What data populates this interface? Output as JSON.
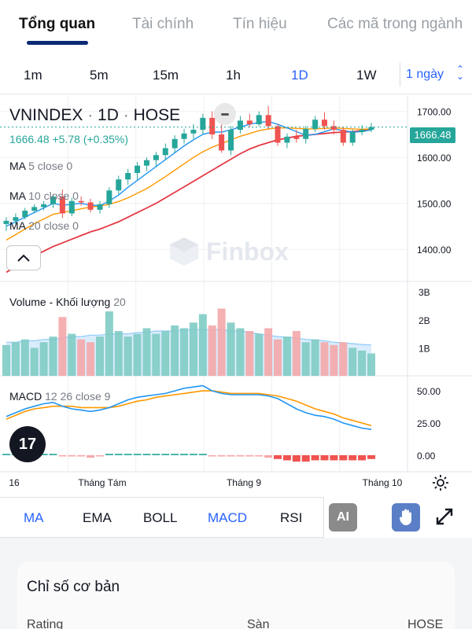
{
  "tabs": [
    "Tổng quan",
    "Tài chính",
    "Tín hiệu",
    "Các mã trong ngành"
  ],
  "timeframes": [
    "1m",
    "5m",
    "15m",
    "1h",
    "1D",
    "1W"
  ],
  "timeframe_select": "1 ngày",
  "legend": {
    "symbol": "VNINDEX",
    "interval": "1D",
    "exchange": "HOSE",
    "last": "1666.48",
    "change": "+5.78 (+0.35%)",
    "ma": [
      {
        "name": "MA",
        "params": "5 close 0"
      },
      {
        "name": "MA",
        "params": "10 close 0"
      },
      {
        "name": "MA",
        "params": "20 close 0"
      }
    ],
    "volume_label": "Volume - Khối lượng",
    "volume_param": "20",
    "macd_label": "MACD",
    "macd_params": "12 26 close 9"
  },
  "watermark": "Finbox",
  "logo_text": "17",
  "price_tag": "1666.48",
  "price_axis": [
    "1700.00",
    "1600.00",
    "1500.00",
    "1400.00"
  ],
  "volume_axis": [
    "3B",
    "2B",
    "1B"
  ],
  "macd_axis": [
    "50.00",
    "25.00",
    "0.00"
  ],
  "time_axis": [
    "16",
    "Tháng Tám",
    "Tháng 9",
    "Tháng 10"
  ],
  "indicators": [
    "MA",
    "EMA",
    "BOLL",
    "MACD",
    "RSI"
  ],
  "ai_label": "AI",
  "card": {
    "title": "Chỉ số cơ bản",
    "row_label": "Rating",
    "row_mid": "Sàn",
    "row_value": "HOSE"
  },
  "colors": {
    "up": "#26a69a",
    "down": "#ef5350",
    "accent": "#2962ff",
    "ma5": "#2196f3",
    "ma10": "#ff9800",
    "ma20": "#e53945"
  },
  "chart_data": {
    "type": "candlestick",
    "ylim": [
      1330,
      1720
    ],
    "candles": [
      {
        "o": 1455,
        "h": 1470,
        "l": 1440,
        "c": 1462
      },
      {
        "o": 1462,
        "h": 1478,
        "l": 1455,
        "c": 1470
      },
      {
        "o": 1470,
        "h": 1490,
        "l": 1465,
        "c": 1484
      },
      {
        "o": 1484,
        "h": 1498,
        "l": 1478,
        "c": 1492
      },
      {
        "o": 1492,
        "h": 1505,
        "l": 1485,
        "c": 1498
      },
      {
        "o": 1498,
        "h": 1520,
        "l": 1490,
        "c": 1515
      },
      {
        "o": 1515,
        "h": 1530,
        "l": 1468,
        "c": 1478
      },
      {
        "o": 1478,
        "h": 1512,
        "l": 1472,
        "c": 1505
      },
      {
        "o": 1505,
        "h": 1515,
        "l": 1495,
        "c": 1502
      },
      {
        "o": 1502,
        "h": 1510,
        "l": 1480,
        "c": 1486
      },
      {
        "o": 1486,
        "h": 1505,
        "l": 1478,
        "c": 1498
      },
      {
        "o": 1498,
        "h": 1535,
        "l": 1490,
        "c": 1528
      },
      {
        "o": 1528,
        "h": 1560,
        "l": 1520,
        "c": 1552
      },
      {
        "o": 1552,
        "h": 1575,
        "l": 1540,
        "c": 1566
      },
      {
        "o": 1566,
        "h": 1590,
        "l": 1550,
        "c": 1582
      },
      {
        "o": 1582,
        "h": 1600,
        "l": 1570,
        "c": 1594
      },
      {
        "o": 1594,
        "h": 1612,
        "l": 1580,
        "c": 1605
      },
      {
        "o": 1605,
        "h": 1630,
        "l": 1595,
        "c": 1620
      },
      {
        "o": 1620,
        "h": 1648,
        "l": 1610,
        "c": 1640
      },
      {
        "o": 1640,
        "h": 1662,
        "l": 1630,
        "c": 1652
      },
      {
        "o": 1652,
        "h": 1672,
        "l": 1640,
        "c": 1660
      },
      {
        "o": 1660,
        "h": 1695,
        "l": 1650,
        "c": 1686
      },
      {
        "o": 1686,
        "h": 1700,
        "l": 1640,
        "c": 1650
      },
      {
        "o": 1650,
        "h": 1680,
        "l": 1610,
        "c": 1615
      },
      {
        "o": 1615,
        "h": 1668,
        "l": 1605,
        "c": 1660
      },
      {
        "o": 1660,
        "h": 1690,
        "l": 1652,
        "c": 1680
      },
      {
        "o": 1680,
        "h": 1695,
        "l": 1665,
        "c": 1672
      },
      {
        "o": 1672,
        "h": 1700,
        "l": 1668,
        "c": 1692
      },
      {
        "o": 1692,
        "h": 1712,
        "l": 1660,
        "c": 1668
      },
      {
        "o": 1668,
        "h": 1672,
        "l": 1625,
        "c": 1632
      },
      {
        "o": 1632,
        "h": 1652,
        "l": 1620,
        "c": 1645
      },
      {
        "o": 1645,
        "h": 1660,
        "l": 1632,
        "c": 1640
      },
      {
        "o": 1640,
        "h": 1668,
        "l": 1630,
        "c": 1662
      },
      {
        "o": 1662,
        "h": 1690,
        "l": 1655,
        "c": 1682
      },
      {
        "o": 1682,
        "h": 1698,
        "l": 1660,
        "c": 1668
      },
      {
        "o": 1668,
        "h": 1680,
        "l": 1650,
        "c": 1660
      },
      {
        "o": 1660,
        "h": 1665,
        "l": 1625,
        "c": 1632
      },
      {
        "o": 1632,
        "h": 1660,
        "l": 1625,
        "c": 1655
      },
      {
        "o": 1655,
        "h": 1670,
        "l": 1648,
        "c": 1660
      },
      {
        "o": 1660,
        "h": 1675,
        "l": 1655,
        "c": 1666
      }
    ],
    "ma5": [
      1450,
      1460,
      1470,
      1480,
      1490,
      1500,
      1496,
      1498,
      1500,
      1496,
      1495,
      1505,
      1518,
      1535,
      1550,
      1565,
      1580,
      1595,
      1610,
      1625,
      1638,
      1650,
      1655,
      1655,
      1660,
      1666,
      1672,
      1676,
      1678,
      1672,
      1664,
      1656,
      1648,
      1650,
      1656,
      1662,
      1658,
      1655,
      1656,
      1660
    ],
    "ma10": [
      1420,
      1432,
      1444,
      1456,
      1466,
      1476,
      1480,
      1484,
      1488,
      1492,
      1494,
      1498,
      1504,
      1512,
      1522,
      1532,
      1545,
      1558,
      1572,
      1586,
      1600,
      1612,
      1622,
      1630,
      1638,
      1646,
      1652,
      1658,
      1662,
      1664,
      1664,
      1663,
      1662,
      1662,
      1663,
      1664,
      1663,
      1662,
      1661,
      1662
    ],
    "ma20": [
      1350,
      1362,
      1374,
      1386,
      1396,
      1406,
      1414,
      1422,
      1430,
      1438,
      1444,
      1452,
      1460,
      1470,
      1480,
      1490,
      1500,
      1512,
      1524,
      1536,
      1548,
      1560,
      1572,
      1584,
      1596,
      1608,
      1618,
      1626,
      1632,
      1638,
      1642,
      1646,
      1648,
      1650,
      1652,
      1654,
      1655,
      1656,
      1658,
      1660
    ],
    "volume": [
      1.1,
      1.2,
      1.3,
      1.0,
      1.2,
      1.4,
      2.1,
      1.5,
      1.3,
      1.2,
      1.4,
      2.3,
      1.6,
      1.4,
      1.5,
      1.7,
      1.5,
      1.6,
      1.8,
      1.7,
      1.9,
      2.2,
      1.8,
      2.4,
      1.9,
      1.7,
      1.6,
      1.5,
      1.7,
      1.3,
      1.4,
      1.6,
      1.2,
      1.3,
      1.2,
      1.1,
      1.2,
      1.0,
      0.9,
      0.8
    ],
    "volume_ma": [
      1.2,
      1.2,
      1.25,
      1.25,
      1.3,
      1.3,
      1.35,
      1.4,
      1.4,
      1.45,
      1.45,
      1.5,
      1.5,
      1.5,
      1.55,
      1.55,
      1.6,
      1.6,
      1.6,
      1.65,
      1.65,
      1.65,
      1.65,
      1.65,
      1.6,
      1.6,
      1.55,
      1.5,
      1.45,
      1.4,
      1.38,
      1.35,
      1.3,
      1.28,
      1.25,
      1.2,
      1.18,
      1.15,
      1.12,
      1.1
    ],
    "macd": [
      30,
      33,
      36,
      38,
      40,
      41,
      38,
      36,
      35,
      34,
      35,
      37,
      40,
      43,
      45,
      46,
      47,
      48,
      50,
      52,
      53,
      54,
      50,
      48,
      47,
      47,
      47,
      47,
      46,
      44,
      40,
      36,
      33,
      31,
      30,
      28,
      25,
      23,
      21,
      20
    ],
    "signal": [
      28,
      31,
      34,
      36,
      37,
      38,
      38,
      38,
      37,
      37,
      37,
      37,
      38,
      40,
      42,
      43,
      45,
      46,
      47,
      48,
      49,
      50,
      50,
      49,
      48,
      48,
      48,
      48,
      47,
      46,
      44,
      42,
      39,
      36,
      34,
      32,
      29,
      27,
      25,
      23
    ],
    "hist": [
      1,
      1,
      1,
      1,
      1,
      1,
      -1,
      -1,
      -1,
      -2,
      -1,
      1,
      1,
      1,
      1,
      1,
      1,
      1,
      1,
      1,
      1,
      1,
      -1,
      -1,
      -1,
      -1,
      -1,
      -1,
      -2,
      -3,
      -4,
      -5,
      -5,
      -4,
      -4,
      -4,
      -4,
      -4,
      -4,
      -3
    ]
  }
}
